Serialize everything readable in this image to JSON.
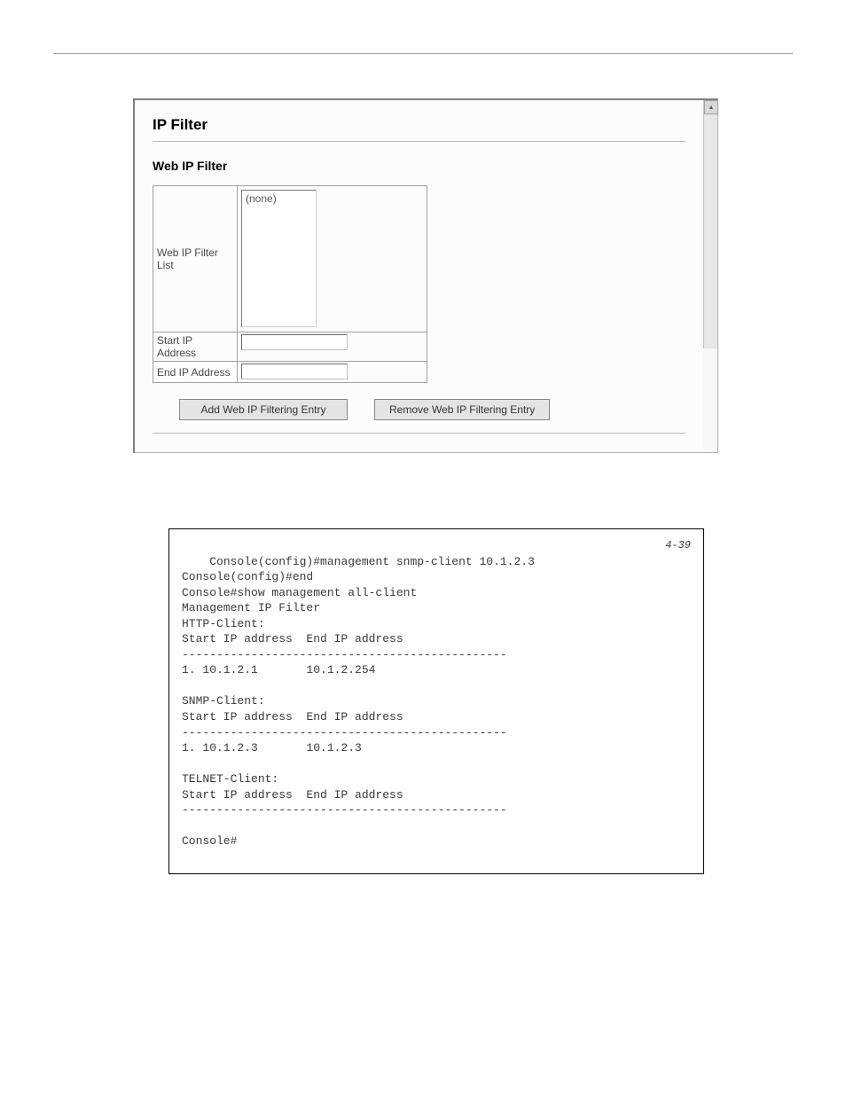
{
  "panel": {
    "title": "IP Filter",
    "subtitle": "Web IP Filter",
    "labels": {
      "list": "Web IP Filter List",
      "start_ip": "Start IP Address",
      "end_ip": "End IP Address"
    },
    "list_placeholder": "(none)",
    "inputs": {
      "start_ip_value": "",
      "end_ip_value": ""
    },
    "buttons": {
      "add": "Add Web IP Filtering Entry",
      "remove": "Remove Web IP Filtering Entry"
    },
    "scrollbar_arrow_up": "▴"
  },
  "console": {
    "page_ref": "4-39",
    "text": "Console(config)#management snmp-client 10.1.2.3\nConsole(config)#end\nConsole#show management all-client\nManagement IP Filter\nHTTP-Client:\nStart IP address  End IP address\n-----------------------------------------------\n1. 10.1.2.1       10.1.2.254\n\nSNMP-Client:\nStart IP address  End IP address\n-----------------------------------------------\n1. 10.1.2.3       10.1.2.3\n\nTELNET-Client:\nStart IP address  End IP address\n-----------------------------------------------\n\nConsole#"
  }
}
